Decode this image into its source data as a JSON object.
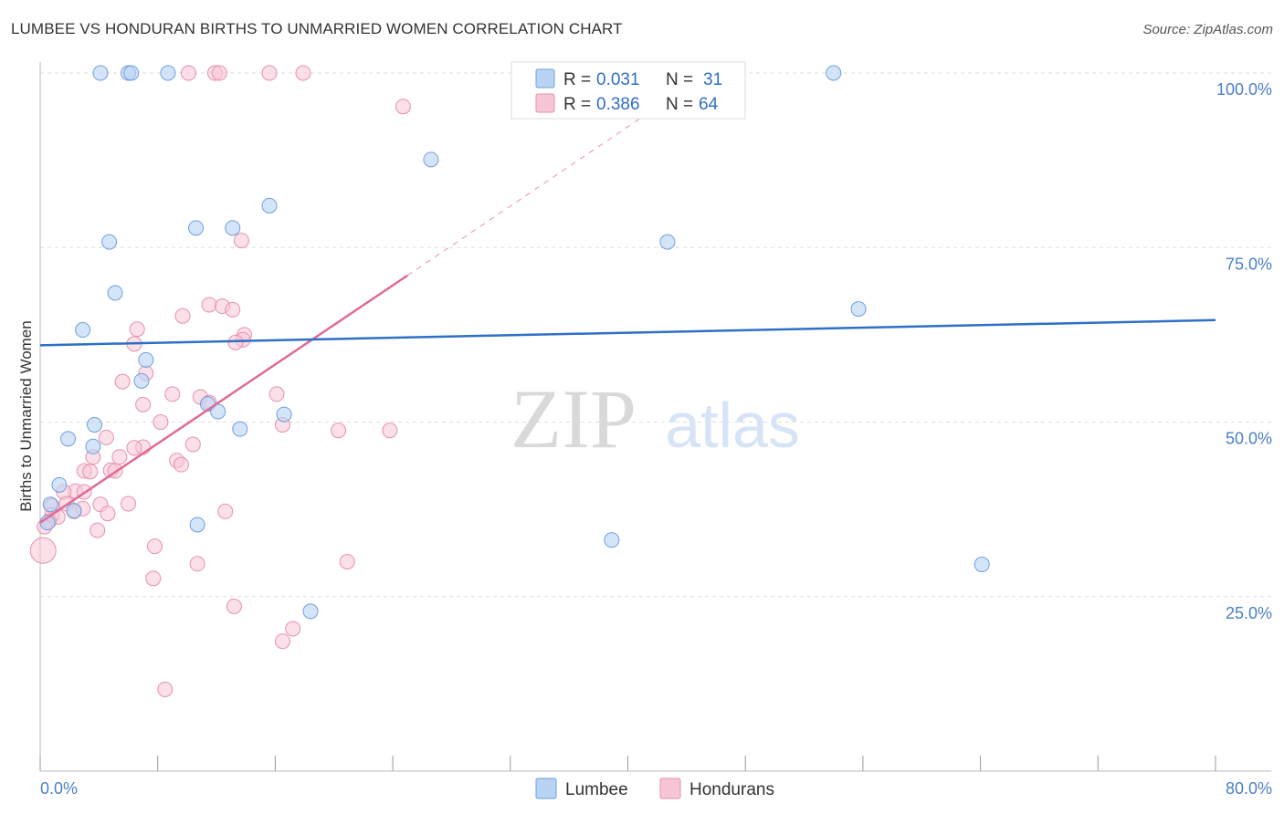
{
  "title": "LUMBEE VS HONDURAN BIRTHS TO UNMARRIED WOMEN CORRELATION CHART",
  "source": "Source: ZipAtlas.com",
  "watermark": {
    "zip": "ZIP",
    "atlas": "atlas"
  },
  "colors": {
    "lumbee_fill": "#b9d3f5",
    "lumbee_stroke": "#6d9fdf",
    "lumbee_line": "#2e6fc7",
    "honduran_fill": "#f7c6d6",
    "honduran_stroke": "#e890ae",
    "honduran_line": "#e06a96",
    "accent_text": "#2e6fc7",
    "grid": "#dddddd"
  },
  "legend_top": {
    "rows": [
      {
        "series": "Lumbee",
        "r_label": "R =",
        "r_value": "0.031",
        "n_label": "N =",
        "n_value": "31"
      },
      {
        "series": "Hondurans",
        "r_label": "R =",
        "r_value": "0.386",
        "n_label": "N =",
        "n_value": "64"
      }
    ]
  },
  "legend_bottom": [
    "Lumbee",
    "Hondurans"
  ],
  "chart_data": {
    "type": "scatter",
    "title": "LUMBEE VS HONDURAN BIRTHS TO UNMARRIED WOMEN CORRELATION CHART",
    "xlabel": "",
    "ylabel": "Births to Unmarried Women",
    "xlim": [
      0,
      80
    ],
    "ylim": [
      0,
      104
    ],
    "x_tick_labels": [
      {
        "value": 0,
        "label": "0.0%"
      },
      {
        "value": 80,
        "label": "80.0%"
      }
    ],
    "y_tick_labels": [
      {
        "value": 25,
        "label": "25.0%"
      },
      {
        "value": 50,
        "label": "50.0%"
      },
      {
        "value": 75,
        "label": "75.0%"
      },
      {
        "value": 100,
        "label": "100.0%"
      }
    ],
    "grid": true,
    "series": [
      {
        "name": "Lumbee",
        "r": 0.031,
        "n": 31,
        "trend": {
          "x0": 0,
          "y0": 61.0,
          "x1": 80,
          "y1": 64.6
        },
        "points": [
          [
            4.1,
            100
          ],
          [
            6.0,
            100
          ],
          [
            6.2,
            100
          ],
          [
            8.7,
            100
          ],
          [
            54.0,
            100
          ],
          [
            26.6,
            87.6
          ],
          [
            15.6,
            81.0
          ],
          [
            10.6,
            77.8
          ],
          [
            13.1,
            77.8
          ],
          [
            4.7,
            75.8
          ],
          [
            42.7,
            75.8
          ],
          [
            5.1,
            68.5
          ],
          [
            55.7,
            66.2
          ],
          [
            2.9,
            63.2
          ],
          [
            7.2,
            58.9
          ],
          [
            6.9,
            55.9
          ],
          [
            11.4,
            52.6
          ],
          [
            12.1,
            51.5
          ],
          [
            16.6,
            51.1
          ],
          [
            3.7,
            49.6
          ],
          [
            13.6,
            49.0
          ],
          [
            1.9,
            47.6
          ],
          [
            3.6,
            46.5
          ],
          [
            1.3,
            41.0
          ],
          [
            0.7,
            38.2
          ],
          [
            2.3,
            37.3
          ],
          [
            0.5,
            35.6
          ],
          [
            10.7,
            35.3
          ],
          [
            38.9,
            33.1
          ],
          [
            64.1,
            29.6
          ],
          [
            18.4,
            22.9
          ]
        ]
      },
      {
        "name": "Hondurans",
        "r": 0.386,
        "n": 64,
        "trend": {
          "x0": 0,
          "y0": 35.6,
          "x1": 25.0,
          "y1": 71.0
        },
        "trend_dashed": {
          "x0": 25.0,
          "y0": 71.0,
          "x1": 44.3,
          "y1": 98.4
        },
        "points": [
          [
            10.1,
            100
          ],
          [
            11.9,
            100
          ],
          [
            12.2,
            100
          ],
          [
            15.6,
            100
          ],
          [
            17.9,
            100
          ],
          [
            24.7,
            95.2
          ],
          [
            13.7,
            76.0
          ],
          [
            11.5,
            66.8
          ],
          [
            12.4,
            66.6
          ],
          [
            13.1,
            66.1
          ],
          [
            9.7,
            65.2
          ],
          [
            6.6,
            63.3
          ],
          [
            13.9,
            62.5
          ],
          [
            13.8,
            61.8
          ],
          [
            13.3,
            61.4
          ],
          [
            6.4,
            61.2
          ],
          [
            7.2,
            57.0
          ],
          [
            5.6,
            55.8
          ],
          [
            9.0,
            54.0
          ],
          [
            16.1,
            54.0
          ],
          [
            10.9,
            53.6
          ],
          [
            11.5,
            52.8
          ],
          [
            7.0,
            52.5
          ],
          [
            8.2,
            50.0
          ],
          [
            16.5,
            49.6
          ],
          [
            20.3,
            48.8
          ],
          [
            23.8,
            48.8
          ],
          [
            4.5,
            47.8
          ],
          [
            7.0,
            46.4
          ],
          [
            6.4,
            46.3
          ],
          [
            10.4,
            46.8
          ],
          [
            3.6,
            45.0
          ],
          [
            5.4,
            45.0
          ],
          [
            9.3,
            44.5
          ],
          [
            9.6,
            43.9
          ],
          [
            3.0,
            43.0
          ],
          [
            3.4,
            42.9
          ],
          [
            4.8,
            43.1
          ],
          [
            5.1,
            43.0
          ],
          [
            2.4,
            40.1
          ],
          [
            3.0,
            40.0
          ],
          [
            1.6,
            40.0
          ],
          [
            1.8,
            38.3
          ],
          [
            4.1,
            38.2
          ],
          [
            6.0,
            38.3
          ],
          [
            0.8,
            38.0
          ],
          [
            2.9,
            37.6
          ],
          [
            2.3,
            37.2
          ],
          [
            12.6,
            37.2
          ],
          [
            4.6,
            36.9
          ],
          [
            0.8,
            36.7
          ],
          [
            1.2,
            36.4
          ],
          [
            0.6,
            35.8
          ],
          [
            0.3,
            35.0
          ],
          [
            3.9,
            34.5
          ],
          [
            0.2,
            31.6
          ],
          [
            7.8,
            32.2
          ],
          [
            10.7,
            29.7
          ],
          [
            20.9,
            30.0
          ],
          [
            7.7,
            27.6
          ],
          [
            13.2,
            23.6
          ],
          [
            17.2,
            20.4
          ],
          [
            16.5,
            18.6
          ],
          [
            8.5,
            11.7
          ]
        ]
      }
    ]
  }
}
